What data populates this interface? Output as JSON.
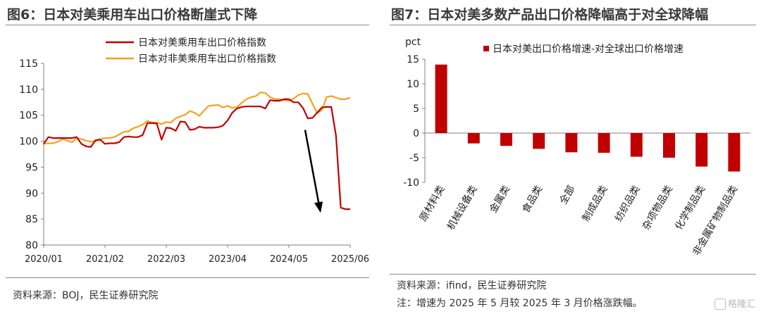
{
  "left": {
    "title": "图6：日本对美乘用车出口价格断崖式下降",
    "source": "资料来源：BOJ，民生证券研究院"
  },
  "right": {
    "title": "图7：日本对美多数产品出口价格降幅高于对全球降幅",
    "source": "资料来源：ifind，民生证券研究院",
    "note": "注：增速为 2025 年 5 月较 2025 年 3 月价格涨跌幅。"
  },
  "watermark": "格隆汇",
  "colors": {
    "us": "#c00000",
    "non_us": "#f5a11c",
    "bar": "#c00000",
    "arrow": "#000000"
  },
  "chart_data": [
    {
      "type": "line",
      "title": "",
      "x_ticks": [
        "2020/01",
        "2021/02",
        "2022/03",
        "2023/04",
        "2024/05",
        "2025/06"
      ],
      "ylim": [
        80,
        115
      ],
      "yticks": [
        80,
        85,
        90,
        95,
        100,
        105,
        110,
        115
      ],
      "legend_position": "top",
      "x": [
        "2020/01",
        "2020/02",
        "2020/03",
        "2020/04",
        "2020/05",
        "2020/06",
        "2020/07",
        "2020/08",
        "2020/09",
        "2020/10",
        "2020/11",
        "2020/12",
        "2021/01",
        "2021/02",
        "2021/03",
        "2021/04",
        "2021/05",
        "2021/06",
        "2021/07",
        "2021/08",
        "2021/09",
        "2021/10",
        "2021/11",
        "2021/12",
        "2022/01",
        "2022/02",
        "2022/03",
        "2022/04",
        "2022/05",
        "2022/06",
        "2022/07",
        "2022/08",
        "2022/09",
        "2022/10",
        "2022/11",
        "2022/12",
        "2023/01",
        "2023/02",
        "2023/03",
        "2023/04",
        "2023/05",
        "2023/06",
        "2023/07",
        "2023/08",
        "2023/09",
        "2023/10",
        "2023/11",
        "2023/12",
        "2024/01",
        "2024/02",
        "2024/03",
        "2024/04",
        "2024/05",
        "2024/06",
        "2024/07",
        "2024/08",
        "2024/09",
        "2024/10",
        "2024/11",
        "2024/12",
        "2025/01",
        "2025/02",
        "2025/03",
        "2025/04",
        "2025/05",
        "2025/06"
      ],
      "series": [
        {
          "name": "日本对美乘用车出口价格指数",
          "color": "#c00000",
          "values": [
            99.5,
            100.8,
            100.6,
            100.6,
            100.6,
            100.6,
            100.6,
            100.8,
            99.5,
            99.0,
            98.9,
            100.2,
            100.3,
            99.5,
            99.6,
            99.6,
            99.8,
            100.8,
            100.9,
            100.8,
            100.8,
            101.2,
            103.5,
            103.5,
            103.4,
            100.3,
            102.6,
            102.5,
            102.0,
            103.8,
            103.7,
            102.2,
            102.3,
            102.8,
            102.6,
            102.6,
            102.6,
            102.7,
            103.0,
            104.0,
            105.5,
            106.3,
            106.6,
            106.7,
            106.7,
            106.7,
            106.7,
            106.3,
            107.9,
            107.8,
            107.8,
            108.1,
            108.1,
            107.5,
            107.5,
            106.4,
            104.4,
            104.5,
            105.5,
            106.5,
            106.6,
            106.6,
            101.0,
            87.2,
            86.9,
            86.9
          ]
        },
        {
          "name": "日本对非美乘用车出口价格指数",
          "color": "#f5a11c",
          "values": [
            99.5,
            99.6,
            99.6,
            99.9,
            100.4,
            100.1,
            99.8,
            100.6,
            100.4,
            100.1,
            99.9,
            100.0,
            100.4,
            100.6,
            100.6,
            100.8,
            101.3,
            101.8,
            101.9,
            102.5,
            102.8,
            103.2,
            103.9,
            103.6,
            103.6,
            103.3,
            103.7,
            103.6,
            104.4,
            104.8,
            105.1,
            105.8,
            105.5,
            104.9,
            105.9,
            106.8,
            106.9,
            107.0,
            106.5,
            106.8,
            106.4,
            106.6,
            107.4,
            108.1,
            108.5,
            108.7,
            109.4,
            109.3,
            108.5,
            108.1,
            108.1,
            107.9,
            107.8,
            108.2,
            108.9,
            109.2,
            109.1,
            107.2,
            105.4,
            106.0,
            108.5,
            108.7,
            108.4,
            108.1,
            108.1,
            108.4
          ]
        }
      ]
    },
    {
      "type": "bar",
      "title": "",
      "ylabel": "pct",
      "ylim": [
        -10,
        15
      ],
      "yticks": [
        -10,
        -5,
        0,
        5,
        10,
        15
      ],
      "legend_position": "top",
      "categories": [
        "原材料类",
        "机械设备类",
        "金属类",
        "食品类",
        "全部",
        "制成品类",
        "纺织品类",
        "杂项物品类",
        "化学制品类",
        "非金属矿物制品类"
      ],
      "series": [
        {
          "name": "日本对美出口价格增速-对全球出口价格增速",
          "color": "#c00000",
          "values": [
            13.9,
            -2.1,
            -2.6,
            -3.2,
            -3.9,
            -4.0,
            -4.8,
            -5.0,
            -6.8,
            -7.8
          ]
        }
      ]
    }
  ]
}
